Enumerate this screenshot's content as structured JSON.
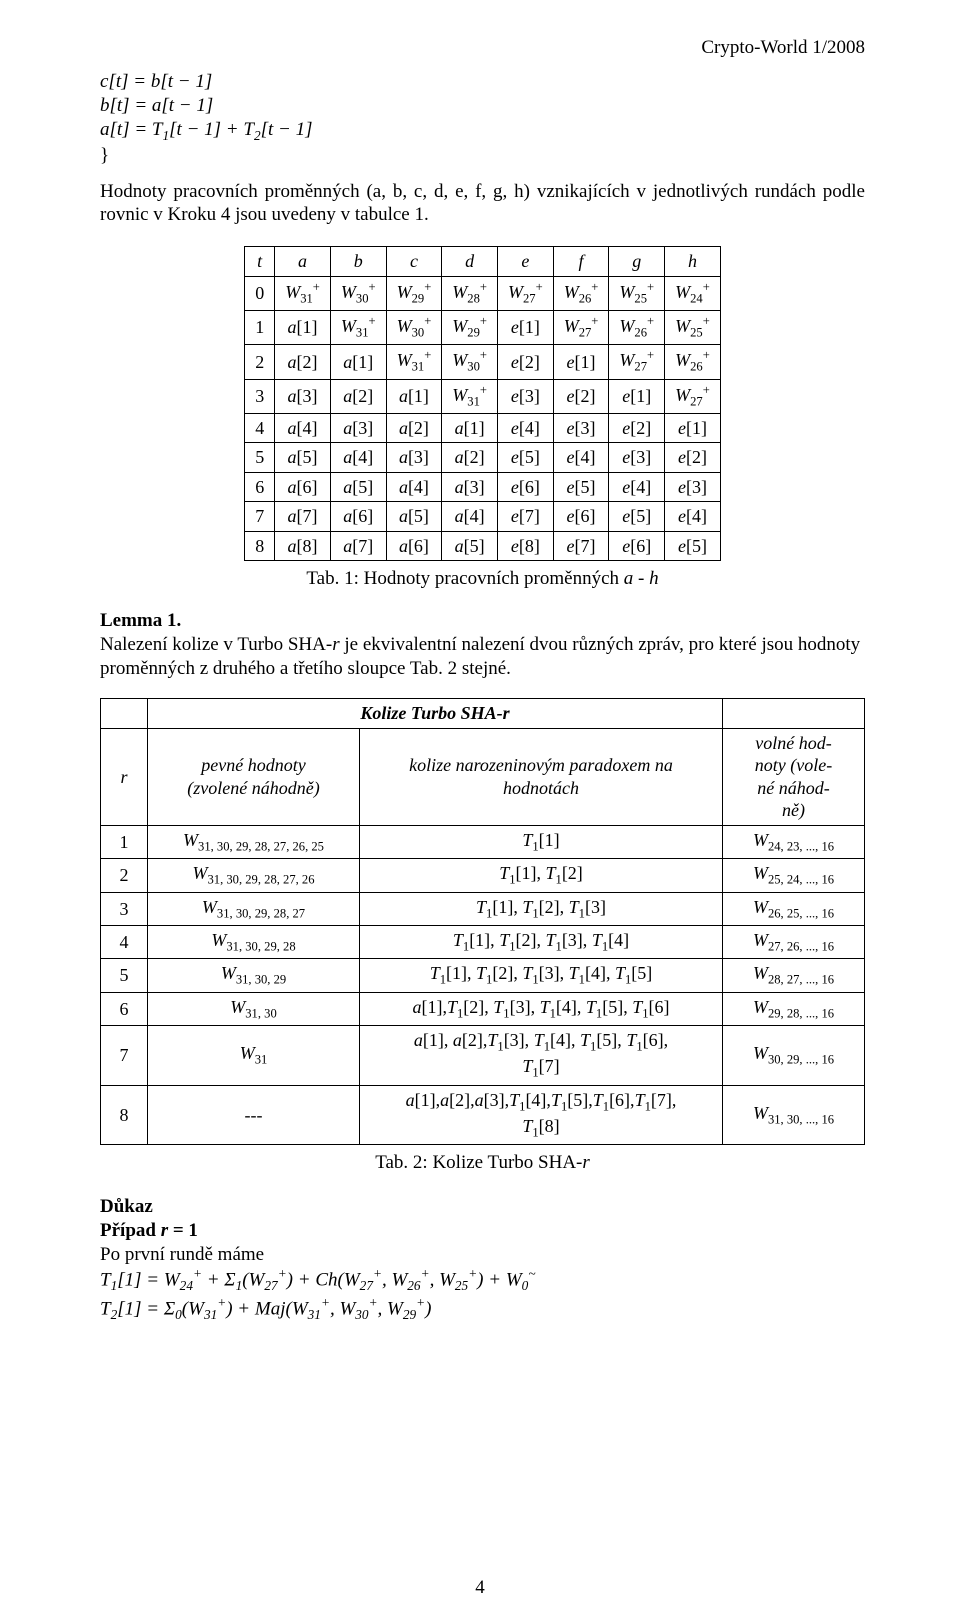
{
  "header": {
    "right": "Crypto-World 1/2008"
  },
  "equations": {
    "l1": "c[t] = b[t − 1]",
    "l2": "b[t] = a[t − 1]",
    "l3_html": "<span class='italicvar'>a</span>[<span class='italicvar'>t</span>] = <span class='italicvar'>T</span><span class='sub'>1</span>[<span class='italicvar'>t</span> − 1] + <span class='italicvar'>T</span><span class='sub'>2</span>[<span class='italicvar'>t</span> − 1]",
    "brace": "}"
  },
  "para1": "Hodnoty pracovních proměnných (a, b, c, d, e, f, g, h) vznikajících v jednotlivých rundách podle rovnic v Kroku 4 jsou uvedeny v tabulce 1.",
  "table1": {
    "headers": [
      "t",
      "a",
      "b",
      "c",
      "d",
      "e",
      "f",
      "g",
      "h"
    ],
    "rows": [
      [
        "0",
        "W31+",
        "W30+",
        "W29+",
        "W28+",
        "W27+",
        "W26+",
        "W25+",
        "W24+"
      ],
      [
        "1",
        "a[1]",
        "W31+",
        "W30+",
        "W29+",
        "e[1]",
        "W27+",
        "W26+",
        "W25+"
      ],
      [
        "2",
        "a[2]",
        "a[1]",
        "W31+",
        "W30+",
        "e[2]",
        "e[1]",
        "W27+",
        "W26+"
      ],
      [
        "3",
        "a[3]",
        "a[2]",
        "a[1]",
        "W31+",
        "e[3]",
        "e[2]",
        "e[1]",
        "W27+"
      ],
      [
        "4",
        "a[4]",
        "a[3]",
        "a[2]",
        "a[1]",
        "e[4]",
        "e[3]",
        "e[2]",
        "e[1]"
      ],
      [
        "5",
        "a[5]",
        "a[4]",
        "a[3]",
        "a[2]",
        "e[5]",
        "e[4]",
        "e[3]",
        "e[2]"
      ],
      [
        "6",
        "a[6]",
        "a[5]",
        "a[4]",
        "a[3]",
        "e[6]",
        "e[5]",
        "e[4]",
        "e[3]"
      ],
      [
        "7",
        "a[7]",
        "a[6]",
        "a[5]",
        "a[4]",
        "e[7]",
        "e[6]",
        "e[5]",
        "e[4]"
      ],
      [
        "8",
        "a[8]",
        "a[7]",
        "a[6]",
        "a[5]",
        "e[8]",
        "e[7]",
        "e[6]",
        "e[5]"
      ]
    ],
    "caption_html": "Tab. 1: Hodnoty pracovních proměnných <span class='italicvar'>a - h</span>"
  },
  "lemma": {
    "title": "Lemma 1.",
    "text_html": "Nalezení kolize v Turbo SHA-<span class='italicvar'>r</span> je ekvivalentní nalezení dvou různých zpráv, pro které jsou hodnoty proměnných z druhého a třetího sloupce Tab. 2 stejné."
  },
  "table2": {
    "title": "Kolize Turbo SHA-r",
    "col_r": "r",
    "col_fixed": "pevné hodnoty (zvolené náhodně)",
    "col_collision": "kolize narozeninovým paradoxem na hodnotách",
    "col_free": "volné hod-noty (vole-né náhod-ně)",
    "rows": [
      {
        "r": "1",
        "fixed": "W|31, 30, 29, 28, 27, 26, 25",
        "mid": "T1[1]",
        "free": "W|24, 23, ..., 16"
      },
      {
        "r": "2",
        "fixed": "W|31, 30, 29, 28, 27, 26",
        "mid": "T1[1], T1[2]",
        "free": "W|25, 24, ..., 16"
      },
      {
        "r": "3",
        "fixed": "W|31, 30, 29, 28, 27",
        "mid": "T1[1], T1[2], T1[3]",
        "free": "W|26, 25, ..., 16"
      },
      {
        "r": "4",
        "fixed": "W|31, 30, 29, 28",
        "mid": "T1[1], T1[2], T1[3], T1[4]",
        "free": "W|27, 26, ..., 16"
      },
      {
        "r": "5",
        "fixed": "W|31, 30, 29",
        "mid": "T1[1], T1[2], T1[3], T1[4], T1[5]",
        "free": "W|28, 27, ..., 16"
      },
      {
        "r": "6",
        "fixed": "W|31, 30",
        "mid": "a[1],T1[2], T1[3], T1[4], T1[5], T1[6]",
        "free": "W|29, 28, ..., 16"
      },
      {
        "r": "7",
        "fixed": "W|31",
        "mid": "a[1], a[2],T1[3], T1[4], T1[5], T1[6], T1[7]",
        "free": "W|30, 29, ..., 16"
      },
      {
        "r": "8",
        "fixed": "---",
        "mid": "a[1],a[2],a[3],T1[4],T1[5],T1[6],T1[7], T1[8]",
        "free": "W|31, 30, ..., 16"
      }
    ],
    "caption_html": "Tab. 2: Kolize Turbo SHA-<span class='italicvar'>r</span>"
  },
  "proof": {
    "title": "Důkaz",
    "case_html": "<span class='bold'>Případ </span><span class='bolditalic'>r</span><span class='bold'> = 1</span>",
    "line1": "Po první rundě máme",
    "f1_html": "<span class='italicvar'>T</span><span class='sub'>1</span>[1] = W<span class='sub'>24</span><span class='sup'>+</span> + Σ<span class='sub'>1</span>(W<span class='sub'>27</span><span class='sup'>+</span>) + <span class='italicvar'>Ch</span>(W<span class='sub'>27</span><span class='sup'>+</span>, W<span class='sub'>26</span><span class='sup'>+</span>, W<span class='sub'>25</span><span class='sup'>+</span>) + W<span class='sub'>0</span><span class='sup'>~</span>",
    "f2_html": "<span class='italicvar'>T</span><span class='sub'>2</span>[1] = Σ<span class='sub'>0</span>(W<span class='sub'>31</span><span class='sup'>+</span>) + <span class='italicvar'>Maj</span>(W<span class='sub'>31</span><span class='sup'>+</span>, W<span class='sub'>30</span><span class='sup'>+</span>, W<span class='sub'>29</span><span class='sup'>+</span>)"
  },
  "pagenum": "4"
}
